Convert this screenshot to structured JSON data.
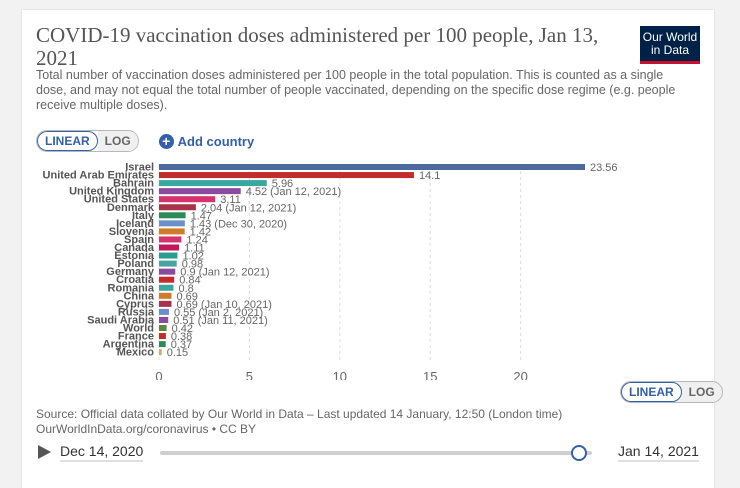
{
  "header": {
    "title": "COVID-19 vaccination doses administered per 100 people, Jan 13, 2021",
    "subtitle": "Total number of vaccination doses administered per 100 people in the total population. This is counted as a single dose, and may not equal the total number of people vaccinated, depending on the specific dose regime (e.g. people receive multiple doses).",
    "logo_line1": "Our World",
    "logo_line2": "in Data"
  },
  "controls": {
    "linear_label": "LINEAR",
    "log_label": "LOG",
    "add_country_label": "Add country",
    "active_scale": "LINEAR"
  },
  "chart_data": {
    "type": "bar",
    "orientation": "horizontal",
    "categories": [
      "Israel",
      "United Arab Emirates",
      "Bahrain",
      "United Kingdom",
      "United States",
      "Denmark",
      "Italy",
      "Iceland",
      "Slovenia",
      "Spain",
      "Canada",
      "Estonia",
      "Poland",
      "Germany",
      "Croatia",
      "Romania",
      "China",
      "Cyprus",
      "Russia",
      "Saudi Arabia",
      "World",
      "France",
      "Argentina",
      "Mexico"
    ],
    "values": [
      23.56,
      14.1,
      5.96,
      4.52,
      3.11,
      2.04,
      1.47,
      1.43,
      1.42,
      1.24,
      1.11,
      1.02,
      0.98,
      0.9,
      0.84,
      0.8,
      0.69,
      0.69,
      0.55,
      0.51,
      0.42,
      0.38,
      0.37,
      0.15
    ],
    "labels": [
      "23.56",
      "14.1",
      "5.96",
      "4.52 (Jan 12, 2021)",
      "3.11",
      "2.04 (Jan 12, 2021)",
      "1.47",
      "1.43 (Dec 30, 2020)",
      "1.42",
      "1.24",
      "1.11",
      "1.02",
      "0.98",
      "0.9 (Jan 12, 2021)",
      "0.84",
      "0.8",
      "0.69",
      "0.69 (Jan 10, 2021)",
      "0.55 (Jan 2, 2021)",
      "0.51 (Jan 11, 2021)",
      "0.42",
      "0.38",
      "0.37",
      "0.15"
    ],
    "colors": [
      "#4c6a9c",
      "#c42b2b",
      "#3aa89e",
      "#8b4a9c",
      "#d6336c",
      "#a8324a",
      "#2e8b57",
      "#6d8fc7",
      "#d07b2a",
      "#d6336c",
      "#c2185b",
      "#2a9d8f",
      "#4aa3a3",
      "#8b4a9c",
      "#c42b2b",
      "#3aa89e",
      "#d07b2a",
      "#a8324a",
      "#6d8fc7",
      "#8b4a9c",
      "#5b8a3c",
      "#c42b2b",
      "#2e8b57",
      "#d4a86a"
    ],
    "xlim": [
      0,
      23.56
    ],
    "xticks": [
      0,
      5,
      10,
      15,
      20
    ],
    "title": "COVID-19 vaccination doses administered per 100 people, Jan 13, 2021"
  },
  "axis_toggle": {
    "linear_label": "LINEAR",
    "log_label": "LOG"
  },
  "footer": {
    "source_line1": "Source: Official data collated by Our World in Data – Last updated 14 January, 12:50 (London time)",
    "source_line2": "OurWorldInData.org/coronavirus • CC BY"
  },
  "timeline": {
    "start_label": "Dec 14, 2020",
    "end_label": "Jan 14, 2021",
    "position": 0.97
  }
}
